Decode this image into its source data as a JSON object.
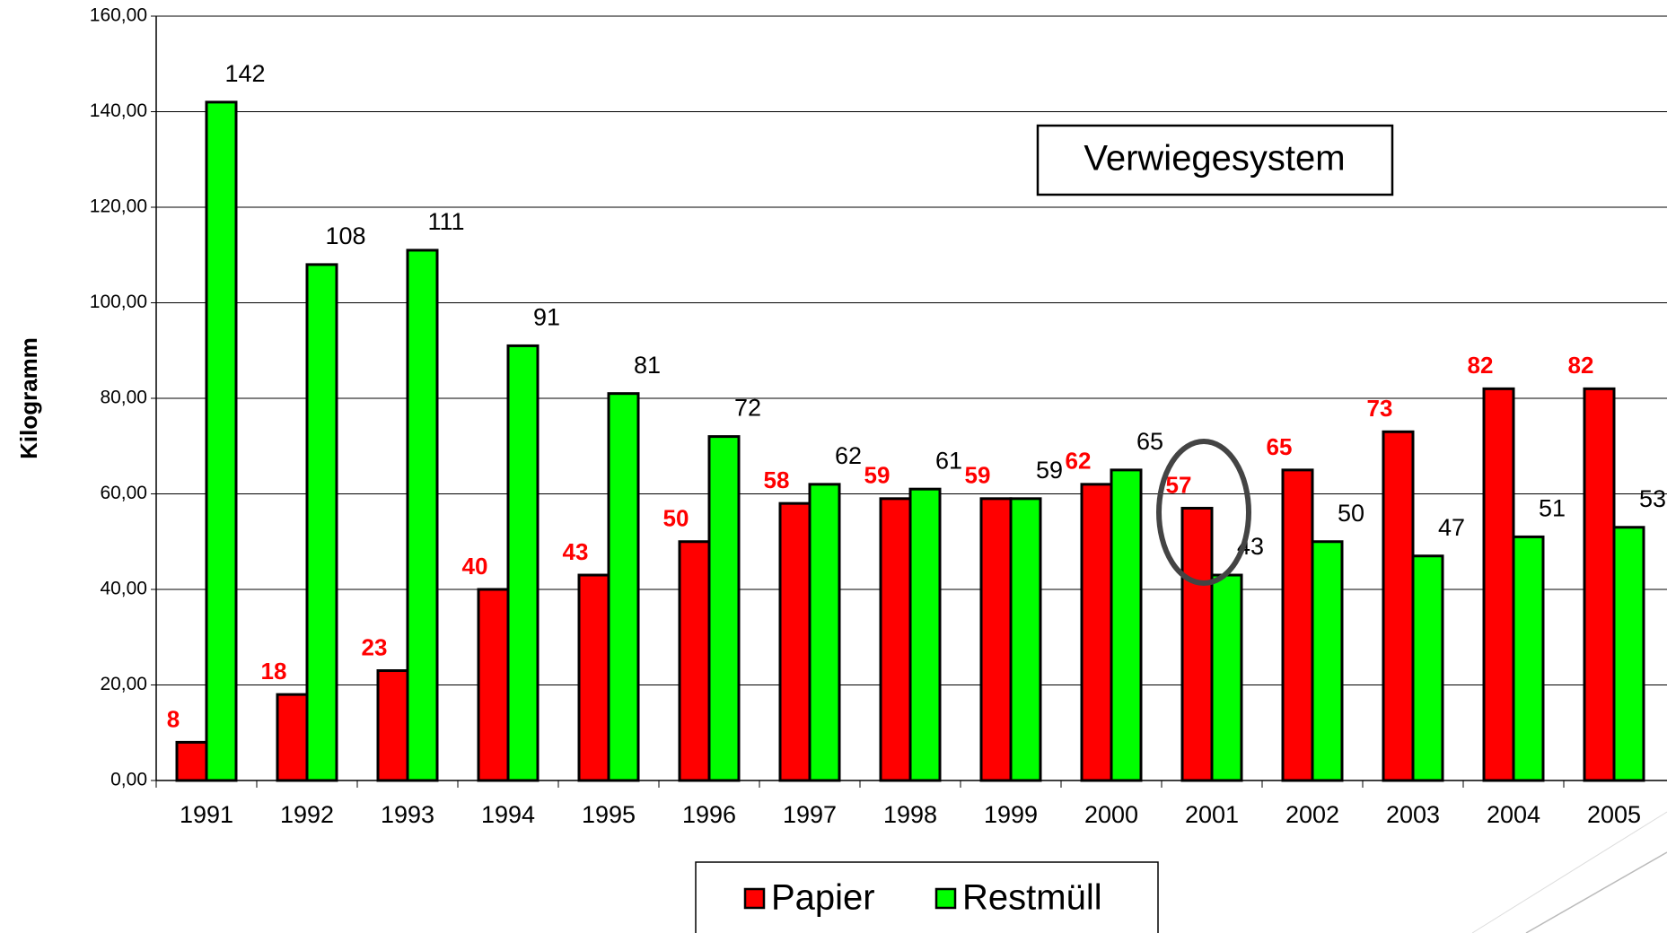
{
  "chart_data": {
    "type": "bar",
    "y_label": "Kilogramm",
    "annotation": "Verwiegesystem",
    "categories": [
      "1991",
      "1992",
      "1993",
      "1994",
      "1995",
      "1996",
      "1997",
      "1998",
      "1999",
      "2000",
      "2001",
      "2002",
      "2003",
      "2004",
      "2005"
    ],
    "series": [
      {
        "name": "Papier",
        "color": "#ff0000",
        "values": [
          8,
          18,
          23,
          40,
          43,
          50,
          58,
          59,
          59,
          62,
          57,
          65,
          73,
          82,
          82
        ]
      },
      {
        "name": "Restmüll",
        "color": "#00ff00",
        "values": [
          142,
          108,
          111,
          91,
          81,
          72,
          62,
          61,
          59,
          65,
          43,
          50,
          47,
          51,
          53
        ]
      }
    ],
    "ylim": [
      0,
      160
    ],
    "yticks": [
      {
        "value": 0,
        "label": "0,00"
      },
      {
        "value": 20,
        "label": "20,00"
      },
      {
        "value": 40,
        "label": "40,00"
      },
      {
        "value": 60,
        "label": "60,00"
      },
      {
        "value": 80,
        "label": "80,00"
      },
      {
        "value": 100,
        "label": "100,00"
      },
      {
        "value": 120,
        "label": "120,00"
      },
      {
        "value": 140,
        "label": "140,00"
      },
      {
        "value": 160,
        "label": "160,00"
      }
    ],
    "grid": true,
    "legend": "bottom"
  }
}
